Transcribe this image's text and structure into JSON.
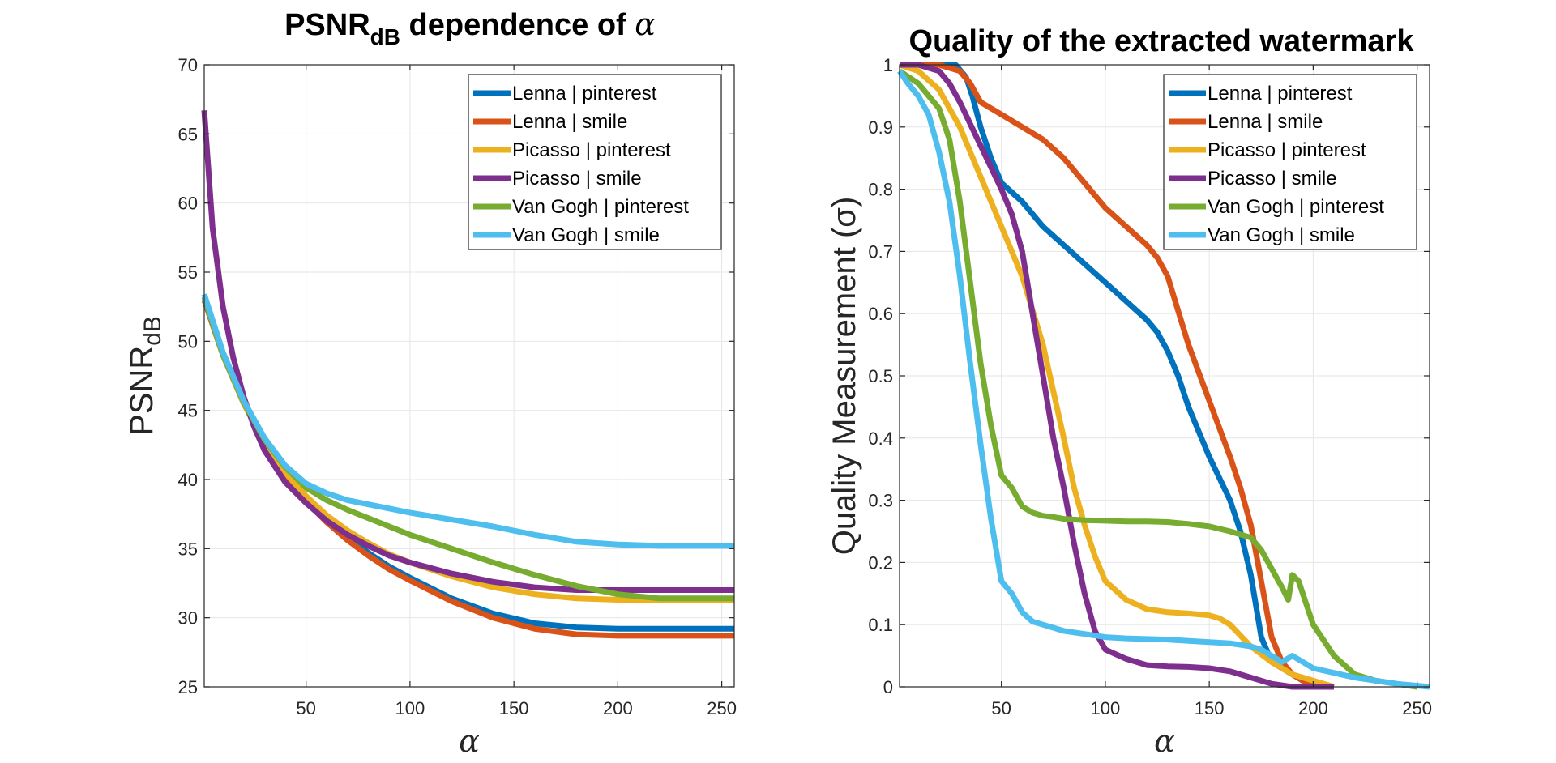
{
  "chart_data": [
    {
      "type": "line",
      "title": "PSNR",
      "title_sub": "dB",
      "title_rest": " dependence of ",
      "title_symbol": "α",
      "ylabel": "PSNR",
      "ylabel_sub": "dB",
      "xlabel": "α",
      "xlim": [
        1,
        256
      ],
      "ylim": [
        25,
        70
      ],
      "xticks": [
        50,
        100,
        150,
        200,
        250
      ],
      "yticks": [
        25,
        30,
        35,
        40,
        45,
        50,
        55,
        60,
        65,
        70
      ],
      "grid": true,
      "legend_position": "top-right",
      "series": [
        {
          "name": "Lenna       | pinterest",
          "color": "#0072BD",
          "x": [
            1,
            10,
            20,
            30,
            40,
            50,
            60,
            70,
            80,
            90,
            100,
            120,
            140,
            160,
            180,
            200,
            220,
            256
          ],
          "y": [
            53,
            49,
            45.5,
            42.7,
            40.4,
            38.6,
            37.1,
            35.8,
            34.7,
            33.7,
            32.9,
            31.4,
            30.3,
            29.6,
            29.3,
            29.2,
            29.2,
            29.2
          ]
        },
        {
          "name": "Lenna       | smile",
          "color": "#D95319",
          "x": [
            1,
            10,
            20,
            30,
            40,
            50,
            60,
            70,
            80,
            90,
            100,
            120,
            140,
            160,
            180,
            200,
            220,
            256
          ],
          "y": [
            53,
            49,
            45.5,
            42.7,
            40.3,
            38.4,
            36.9,
            35.6,
            34.5,
            33.5,
            32.7,
            31.2,
            30.0,
            29.2,
            28.8,
            28.7,
            28.7,
            28.7
          ]
        },
        {
          "name": "Picasso     | pinterest",
          "color": "#EDB120",
          "x": [
            1,
            10,
            20,
            30,
            40,
            50,
            60,
            70,
            80,
            90,
            100,
            120,
            140,
            160,
            180,
            200,
            220,
            256
          ],
          "y": [
            53.2,
            49,
            45.5,
            42.7,
            40.5,
            38.8,
            37.4,
            36.3,
            35.4,
            34.6,
            34.0,
            33.0,
            32.2,
            31.7,
            31.4,
            31.3,
            31.3,
            31.3
          ]
        },
        {
          "name": "Picasso     | smile",
          "color": "#7E2F8E",
          "x": [
            1,
            5,
            10,
            15,
            20,
            25,
            30,
            40,
            50,
            60,
            70,
            80,
            90,
            100,
            120,
            140,
            160,
            180,
            200,
            220,
            256
          ],
          "y": [
            66.7,
            58.2,
            52.5,
            48.8,
            46.0,
            43.8,
            42.1,
            39.8,
            38.3,
            37.0,
            36.0,
            35.2,
            34.5,
            34.0,
            33.2,
            32.6,
            32.2,
            32.0,
            32.0,
            32.0,
            32.0
          ]
        },
        {
          "name": "Van Gogh | pinterest",
          "color": "#77AC30",
          "x": [
            1,
            10,
            20,
            30,
            40,
            50,
            60,
            70,
            80,
            90,
            100,
            120,
            140,
            160,
            180,
            200,
            220,
            256
          ],
          "y": [
            53.2,
            49,
            45.6,
            42.9,
            40.9,
            39.4,
            38.5,
            37.8,
            37.2,
            36.6,
            36.0,
            35.0,
            34.0,
            33.1,
            32.3,
            31.7,
            31.4,
            31.4
          ]
        },
        {
          "name": "Van Gogh | smile",
          "color": "#4DBEEE",
          "x": [
            1,
            10,
            20,
            30,
            40,
            50,
            60,
            70,
            80,
            90,
            100,
            120,
            140,
            160,
            180,
            200,
            220,
            256
          ],
          "y": [
            53.4,
            49.2,
            45.7,
            43.0,
            41.0,
            39.7,
            39.0,
            38.5,
            38.2,
            37.9,
            37.6,
            37.1,
            36.6,
            36.0,
            35.5,
            35.3,
            35.2,
            35.2
          ]
        }
      ]
    },
    {
      "type": "line",
      "title": "Quality of the extracted watermark",
      "ylabel": "Quality Measurement (σ)",
      "xlabel": "α",
      "xlim": [
        1,
        256
      ],
      "ylim": [
        0,
        1
      ],
      "xticks": [
        50,
        100,
        150,
        200,
        250
      ],
      "yticks": [
        0,
        0.1,
        0.2,
        0.3,
        0.4,
        0.5,
        0.6,
        0.7,
        0.8,
        0.9,
        1
      ],
      "grid": true,
      "legend_position": "top-right",
      "series": [
        {
          "name": "Lenna       | pinterest",
          "color": "#0072BD",
          "x": [
            20,
            28,
            33,
            36,
            40,
            45,
            50,
            60,
            70,
            80,
            90,
            100,
            110,
            120,
            125,
            130,
            135,
            140,
            150,
            160,
            165,
            170,
            175,
            180,
            185,
            190,
            200
          ],
          "y": [
            1.0,
            1.0,
            0.98,
            0.95,
            0.9,
            0.85,
            0.81,
            0.78,
            0.74,
            0.71,
            0.68,
            0.65,
            0.62,
            0.59,
            0.57,
            0.54,
            0.5,
            0.45,
            0.37,
            0.3,
            0.25,
            0.18,
            0.08,
            0.04,
            0.03,
            0.02,
            0.0
          ]
        },
        {
          "name": "Lenna       | smile",
          "color": "#D95319",
          "x": [
            1,
            20,
            30,
            35,
            40,
            50,
            60,
            70,
            80,
            90,
            100,
            110,
            120,
            125,
            130,
            140,
            150,
            160,
            165,
            170,
            175,
            180,
            185,
            190,
            195,
            200
          ],
          "y": [
            1.0,
            1.0,
            0.99,
            0.97,
            0.94,
            0.92,
            0.9,
            0.88,
            0.85,
            0.81,
            0.77,
            0.74,
            0.71,
            0.69,
            0.66,
            0.55,
            0.46,
            0.37,
            0.32,
            0.26,
            0.17,
            0.08,
            0.04,
            0.02,
            0.01,
            0.0
          ]
        },
        {
          "name": "Picasso     | pinterest",
          "color": "#EDB120",
          "x": [
            1,
            10,
            20,
            30,
            40,
            50,
            60,
            70,
            80,
            85,
            90,
            95,
            100,
            110,
            120,
            130,
            140,
            150,
            155,
            160,
            170,
            180,
            190,
            200,
            210
          ],
          "y": [
            1.0,
            0.99,
            0.96,
            0.9,
            0.82,
            0.74,
            0.66,
            0.55,
            0.4,
            0.32,
            0.26,
            0.21,
            0.17,
            0.14,
            0.125,
            0.12,
            0.118,
            0.115,
            0.11,
            0.1,
            0.065,
            0.04,
            0.02,
            0.01,
            0.0
          ]
        },
        {
          "name": "Picasso     | smile",
          "color": "#7E2F8E",
          "x": [
            1,
            10,
            20,
            25,
            30,
            40,
            50,
            55,
            60,
            65,
            70,
            75,
            80,
            85,
            90,
            95,
            100,
            110,
            120,
            130,
            140,
            150,
            160,
            170,
            180,
            190,
            210
          ],
          "y": [
            1.0,
            1.0,
            0.99,
            0.97,
            0.94,
            0.87,
            0.8,
            0.76,
            0.7,
            0.6,
            0.5,
            0.4,
            0.32,
            0.23,
            0.15,
            0.09,
            0.06,
            0.045,
            0.035,
            0.033,
            0.032,
            0.03,
            0.025,
            0.015,
            0.005,
            0.0,
            0.0
          ]
        },
        {
          "name": "Van Gogh | pinterest",
          "color": "#77AC30",
          "x": [
            1,
            10,
            20,
            25,
            30,
            35,
            40,
            45,
            50,
            55,
            60,
            65,
            70,
            75,
            80,
            90,
            100,
            110,
            120,
            130,
            140,
            150,
            160,
            170,
            175,
            180,
            185,
            188,
            190,
            193,
            196,
            200,
            210,
            220,
            230,
            240,
            250
          ],
          "y": [
            0.99,
            0.97,
            0.93,
            0.88,
            0.78,
            0.65,
            0.52,
            0.42,
            0.34,
            0.32,
            0.29,
            0.28,
            0.275,
            0.273,
            0.27,
            0.268,
            0.267,
            0.266,
            0.266,
            0.265,
            0.262,
            0.258,
            0.25,
            0.24,
            0.22,
            0.19,
            0.16,
            0.14,
            0.18,
            0.17,
            0.14,
            0.1,
            0.05,
            0.02,
            0.01,
            0.005,
            0.0
          ]
        },
        {
          "name": "Van Gogh | smile",
          "color": "#4DBEEE",
          "x": [
            1,
            5,
            10,
            15,
            20,
            25,
            30,
            35,
            40,
            45,
            50,
            55,
            60,
            65,
            70,
            80,
            90,
            100,
            110,
            120,
            130,
            140,
            150,
            160,
            170,
            175,
            180,
            185,
            190,
            195,
            200,
            220,
            240,
            256
          ],
          "y": [
            0.99,
            0.97,
            0.95,
            0.92,
            0.86,
            0.78,
            0.66,
            0.52,
            0.39,
            0.27,
            0.17,
            0.15,
            0.12,
            0.105,
            0.1,
            0.09,
            0.085,
            0.08,
            0.078,
            0.077,
            0.076,
            0.074,
            0.072,
            0.07,
            0.065,
            0.06,
            0.05,
            0.04,
            0.05,
            0.04,
            0.03,
            0.015,
            0.005,
            0.0
          ]
        }
      ]
    }
  ]
}
